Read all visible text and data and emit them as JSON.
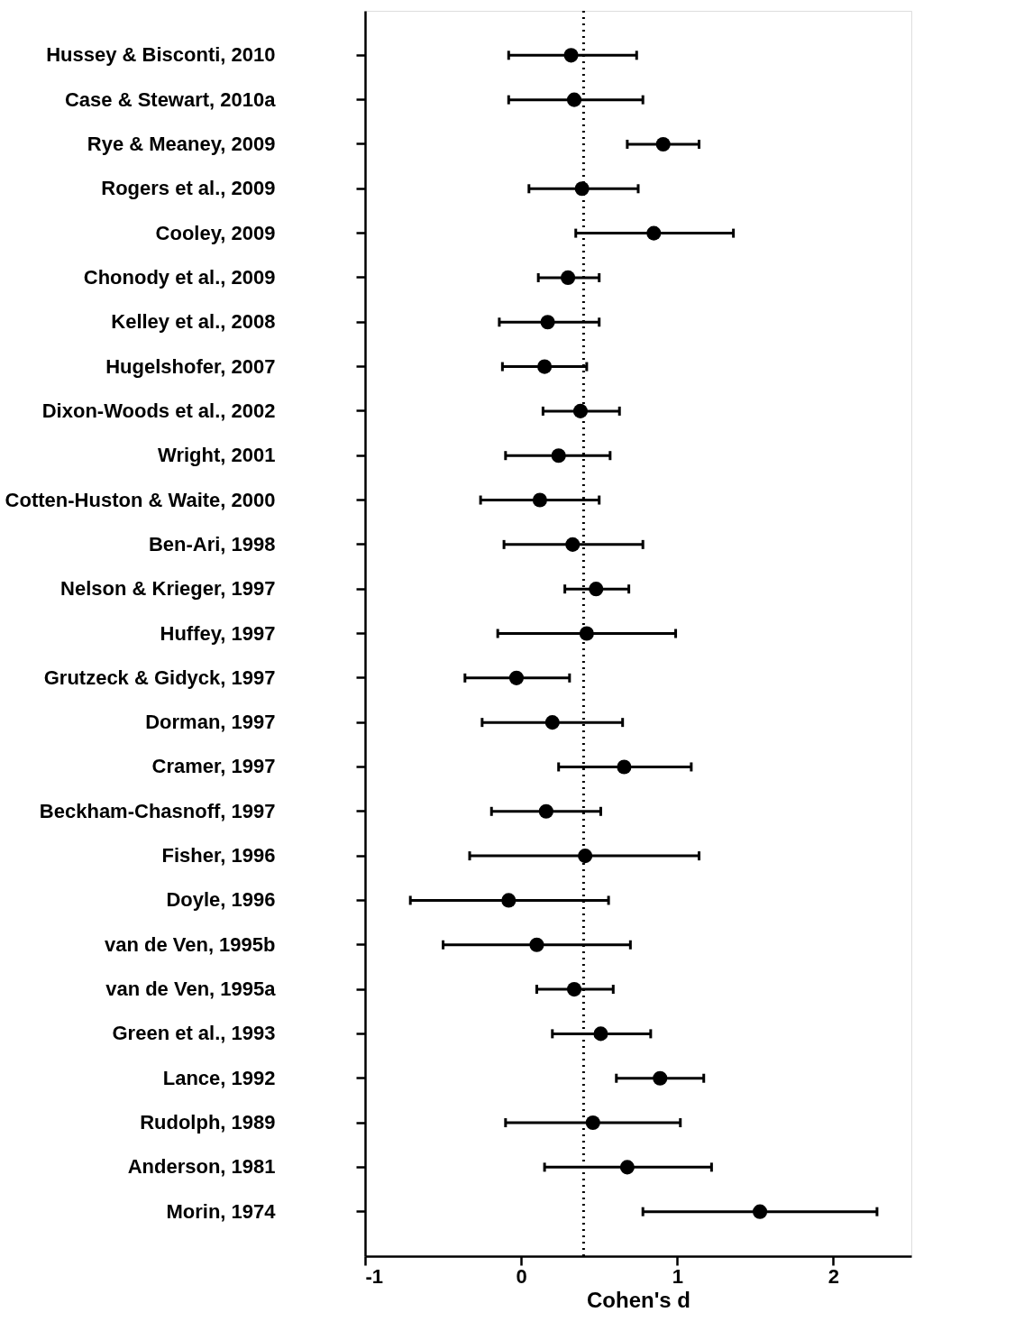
{
  "chart_data": {
    "type": "scatter",
    "orientation": "horizontal",
    "xlabel": "Cohen's d",
    "categories": [
      "Hussey & Bisconti, 2010",
      "Case & Stewart, 2010a",
      "Rye & Meaney, 2009",
      "Rogers et al., 2009",
      "Cooley, 2009",
      "Chonody et al., 2009",
      "Kelley et al., 2008",
      "Hugelshofer, 2007",
      "Dixon-Woods et al., 2002",
      "Wright, 2001",
      "Cotten-Huston & Waite, 2000",
      "Ben-Ari, 1998",
      "Nelson & Krieger, 1997",
      "Huffey, 1997",
      "Grutzeck & Gidyck, 1997",
      "Dorman, 1997",
      "Cramer, 1997",
      "Beckham-Chasnoff, 1997",
      "Fisher, 1996",
      "Doyle, 1996",
      "van de Ven, 1995b",
      "van de Ven, 1995a",
      "Green et al., 1993",
      "Lance, 1992",
      "Rudolph, 1989",
      "Anderson, 1981",
      "Morin, 1974"
    ],
    "values": [
      0.32,
      0.34,
      0.91,
      0.39,
      0.85,
      0.3,
      0.17,
      0.15,
      0.38,
      0.24,
      0.12,
      0.33,
      0.48,
      0.42,
      -0.03,
      0.2,
      0.66,
      0.16,
      0.41,
      -0.08,
      0.1,
      0.34,
      0.51,
      0.89,
      0.46,
      0.68,
      1.53
    ],
    "errors": [
      [
        -0.08,
        0.74
      ],
      [
        -0.08,
        0.78
      ],
      [
        0.68,
        1.14
      ],
      [
        0.05,
        0.75
      ],
      [
        0.35,
        1.36
      ],
      [
        0.11,
        0.5
      ],
      [
        -0.14,
        0.5
      ],
      [
        -0.12,
        0.42
      ],
      [
        0.14,
        0.63
      ],
      [
        -0.1,
        0.57
      ],
      [
        -0.26,
        0.5
      ],
      [
        -0.11,
        0.78
      ],
      [
        0.28,
        0.69
      ],
      [
        -0.15,
        0.99
      ],
      [
        -0.36,
        0.31
      ],
      [
        -0.25,
        0.65
      ],
      [
        0.24,
        1.09
      ],
      [
        -0.19,
        0.51
      ],
      [
        -0.33,
        1.14
      ],
      [
        -0.71,
        0.56
      ],
      [
        -0.5,
        0.7
      ],
      [
        0.1,
        0.59
      ],
      [
        0.2,
        0.83
      ],
      [
        0.61,
        1.17
      ],
      [
        -0.1,
        1.02
      ],
      [
        0.15,
        1.22
      ],
      [
        0.78,
        2.28
      ]
    ],
    "color": "#000000",
    "marker": "circle",
    "xlim": [
      -1,
      2.5
    ],
    "xticks": [
      -1,
      0,
      1,
      2
    ],
    "ref_lines": [
      {
        "axis": "x",
        "value": 0.4,
        "line_style": "dotted"
      }
    ],
    "grid": false,
    "legend": false
  }
}
